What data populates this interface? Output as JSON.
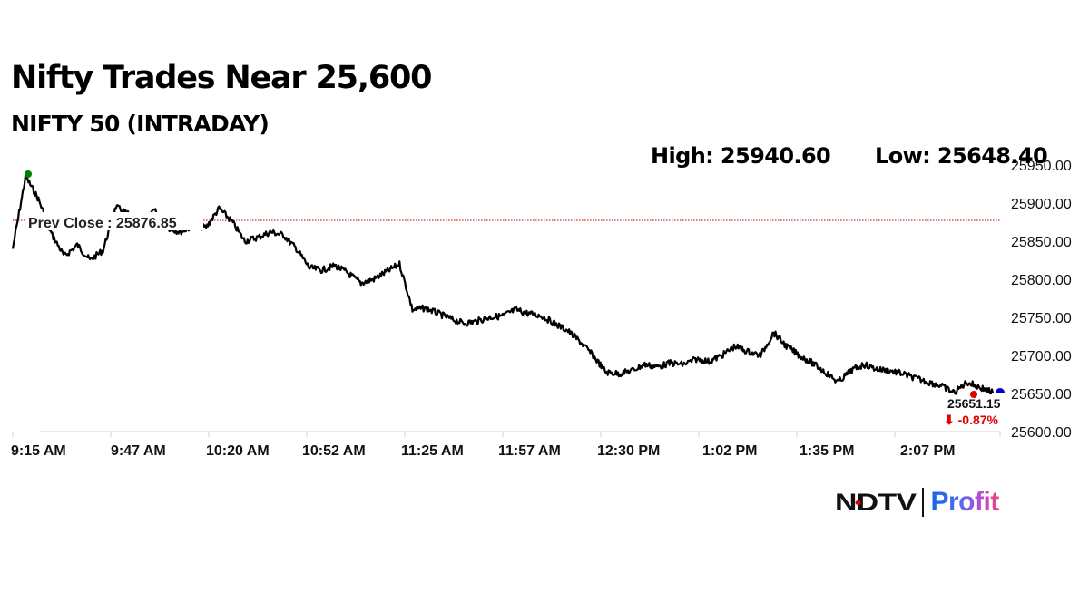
{
  "header": {
    "title": "Nifty Trades Near 25,600",
    "subtitle": "NIFTY 50 (INTRADAY)",
    "high_label": "High: 25940.60",
    "low_label": "Low: 25648.40"
  },
  "annotations": {
    "prev_close_label": "Prev Close : 25876.85",
    "last_value": "25651.15",
    "change": "⬇ -0.87%"
  },
  "logo": {
    "brand": "NDTV",
    "product": "Profit"
  },
  "colors": {
    "line": "#000000",
    "prev_close": "#c00000",
    "high_marker": "#008000",
    "low_marker": "#e00000",
    "last_marker": "#0000cc",
    "change": "#e00000"
  },
  "chart_data": {
    "type": "line",
    "title": "NIFTY 50 (INTRADAY)",
    "xlabel": "",
    "ylabel": "",
    "ylim": [
      25600,
      25950
    ],
    "grid": false,
    "legend": "none",
    "y_ticks": [
      "25950.00",
      "25900.00",
      "25850.00",
      "25800.00",
      "25750.00",
      "25700.00",
      "25650.00",
      "25600.00"
    ],
    "x_ticks": [
      "9:15 AM",
      "9:47 AM",
      "10:20 AM",
      "10:52 AM",
      "11:25 AM",
      "11:57 AM",
      "12:30 PM",
      "1:02 PM",
      "1:35 PM",
      "2:07 PM"
    ],
    "prev_close": 25876.85,
    "high": 25940.6,
    "low": 25648.4,
    "last": 25651.15,
    "change_pct": -0.87,
    "series": [
      {
        "name": "NIFTY 50",
        "x": [
          "9:15 AM",
          "9:18 AM",
          "9:22 AM",
          "9:26 AM",
          "9:30 AM",
          "9:34 AM",
          "9:38 AM",
          "9:42 AM",
          "9:47 AM",
          "9:51 AM",
          "9:55 AM",
          "9:59 AM",
          "10:03 AM",
          "10:07 AM",
          "10:12 AM",
          "10:16 AM",
          "10:20 AM",
          "10:24 AM",
          "10:28 AM",
          "10:32 AM",
          "10:36 AM",
          "10:40 AM",
          "10:44 AM",
          "10:48 AM",
          "10:52 AM",
          "10:56 AM",
          "11:00 AM",
          "11:05 AM",
          "11:09 AM",
          "11:13 AM",
          "11:17 AM",
          "11:21 AM",
          "11:25 AM",
          "11:29 AM",
          "11:33 AM",
          "11:37 AM",
          "11:41 AM",
          "11:45 AM",
          "11:49 AM",
          "11:53 AM",
          "11:57 AM",
          "12:01 PM",
          "12:05 PM",
          "12:10 PM",
          "12:14 PM",
          "12:18 PM",
          "12:22 PM",
          "12:26 PM",
          "12:30 PM",
          "12:34 PM",
          "12:38 PM",
          "12:42 PM",
          "12:46 PM",
          "12:50 PM",
          "12:54 PM",
          "12:58 PM",
          "1:02 PM",
          "1:06 PM",
          "1:10 PM",
          "1:14 PM",
          "1:18 PM",
          "1:22 PM",
          "1:26 PM",
          "1:30 PM",
          "1:35 PM",
          "1:39 PM",
          "1:43 PM",
          "1:47 PM",
          "1:51 PM",
          "1:55 PM",
          "1:59 PM",
          "2:03 PM",
          "2:07 PM",
          "2:11 PM",
          "2:15 PM",
          "2:19 PM",
          "2:23 PM"
        ],
        "values": [
          25840,
          25935,
          25905,
          25860,
          25830,
          25845,
          25825,
          25838,
          25895,
          25885,
          25872,
          25890,
          25868,
          25862,
          25870,
          25868,
          25893,
          25876,
          25850,
          25855,
          25862,
          25858,
          25840,
          25815,
          25812,
          25818,
          25808,
          25795,
          25800,
          25810,
          25820,
          25760,
          25762,
          25755,
          25748,
          25742,
          25745,
          25750,
          25752,
          25760,
          25755,
          25752,
          25742,
          25733,
          25718,
          25700,
          25678,
          25676,
          25680,
          25688,
          25685,
          25690,
          25688,
          25695,
          25692,
          25700,
          25712,
          25705,
          25700,
          25730,
          25712,
          25700,
          25690,
          25678,
          25665,
          25680,
          25688,
          25682,
          25680,
          25676,
          25670,
          25665,
          25660,
          25651,
          25665,
          25658,
          25651
        ]
      }
    ]
  }
}
